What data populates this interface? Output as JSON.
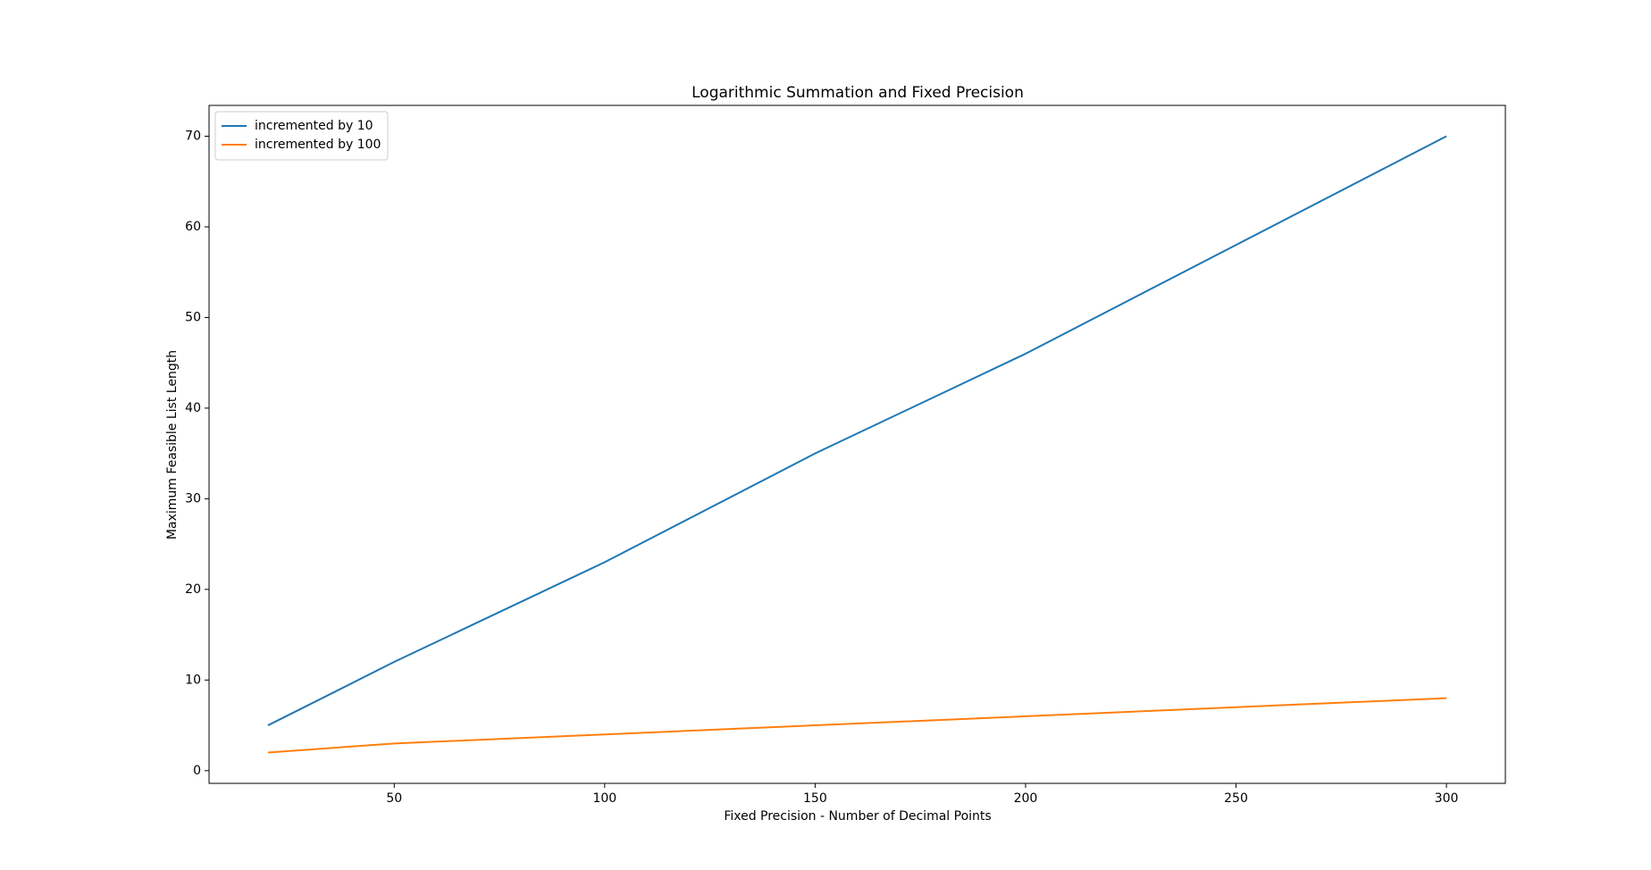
{
  "chart_data": {
    "type": "line",
    "title": "Logarithmic Summation and Fixed Precision",
    "x_label": "Fixed Precision - Number of Decimal Points",
    "y_label": "Maximum Feasible List Length",
    "x": [
      20,
      50,
      100,
      150,
      200,
      250,
      300
    ],
    "series": [
      {
        "name": "incremented by 10",
        "color": "#1f77b4",
        "values": [
          5,
          12,
          23,
          35,
          46,
          58,
          70
        ]
      },
      {
        "name": "incremented by 100",
        "color": "#ff7f0e",
        "values": [
          2,
          3,
          4,
          5,
          6,
          7,
          8
        ]
      }
    ],
    "xlim": [
      6,
      314
    ],
    "ylim": [
      -1.4,
      73.4
    ],
    "xticks": [
      50,
      100,
      150,
      200,
      250,
      300
    ],
    "yticks": [
      0,
      10,
      20,
      30,
      40,
      50,
      60,
      70
    ],
    "grid": false,
    "legend": "upper left"
  }
}
